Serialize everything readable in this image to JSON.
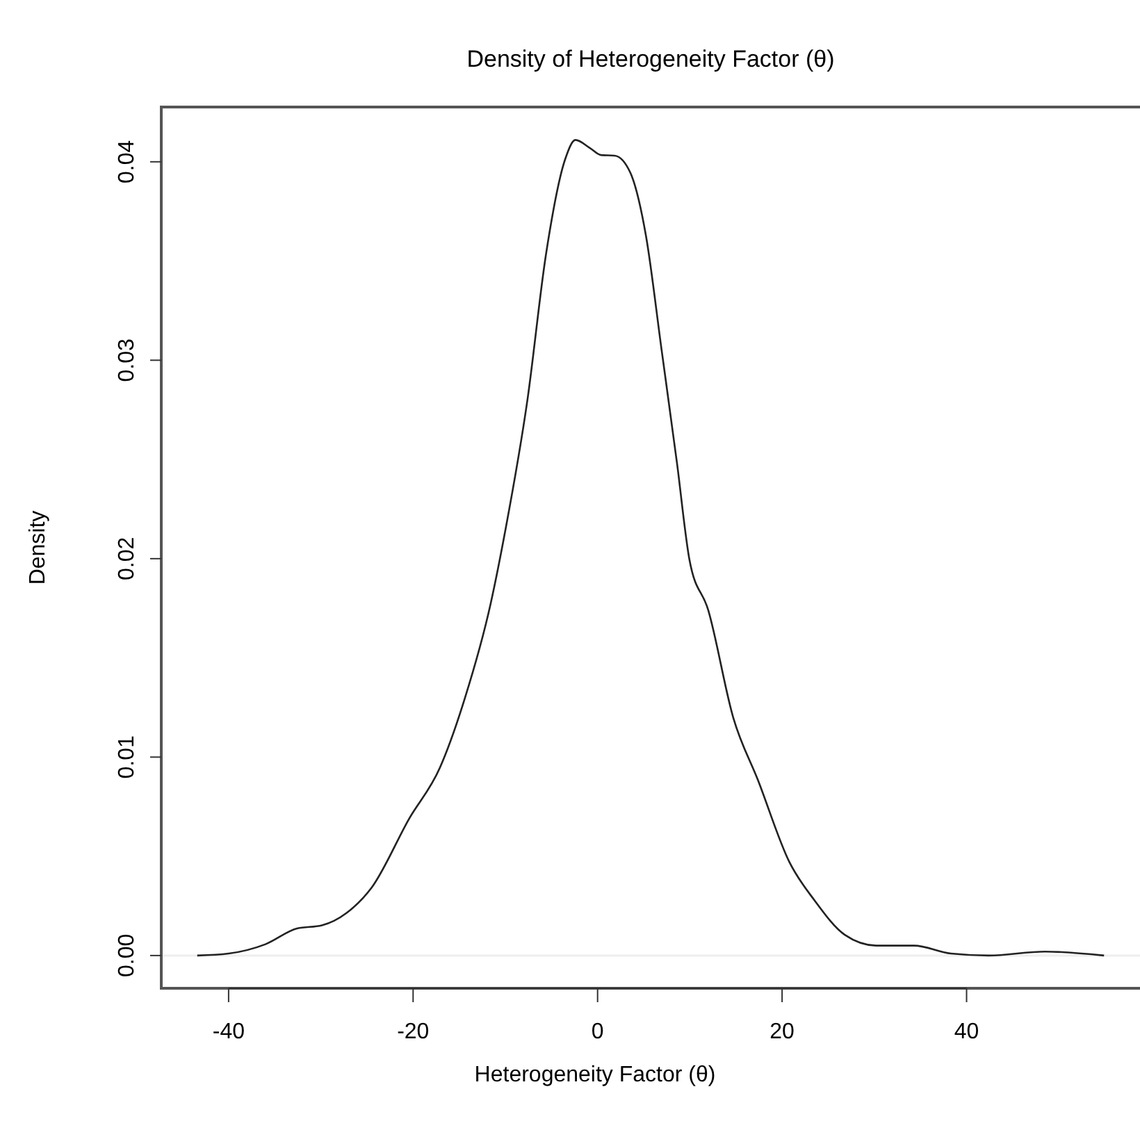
{
  "chart_data": {
    "type": "line",
    "title": "Density of Heterogeneity Factor (θ)",
    "xlabel": "Heterogeneity Factor (θ)",
    "ylabel": "Density",
    "x": [
      -43.4,
      -40.0,
      -36.0,
      -32.6,
      -29.9,
      -27.2,
      -24.5,
      -20.4,
      -17.1,
      -14.4,
      -11.6,
      -9.96,
      -7.6,
      -5.6,
      -3.55,
      -2.4,
      -0.85,
      0.37,
      1.85,
      3.55,
      5.24,
      6.93,
      8.6,
      9.96,
      12.0,
      14.7,
      17.4,
      20.8,
      23.5,
      26.8,
      30.2,
      34.3,
      38.3,
      42.4,
      48.5,
      54.9
    ],
    "series": [
      {
        "color": "#222222",
        "values": [
          0.0,
          0.0001,
          0.00057,
          0.00136,
          0.00152,
          0.00215,
          0.00342,
          0.00692,
          0.00946,
          0.01295,
          0.01772,
          0.02153,
          0.02802,
          0.03532,
          0.04008,
          0.0411,
          0.0407,
          0.04034,
          0.04031,
          0.03945,
          0.03628,
          0.03055,
          0.02484,
          0.01994,
          0.0174,
          0.012,
          0.00882,
          0.0047,
          0.00279,
          0.00104,
          0.0005,
          0.0005,
          0.0001,
          0.0,
          0.0002,
          0.0
        ]
      }
    ],
    "xlim": [
      -47.3,
      58.8
    ],
    "ylim": [
      -0.00165,
      0.04276
    ],
    "xticks": [
      -40,
      -20,
      0,
      20,
      40
    ],
    "yticks": [
      {
        "value": 0,
        "label": "0.00"
      },
      {
        "value": 0.01,
        "label": "0.01"
      },
      {
        "value": 0.02,
        "label": "0.02"
      },
      {
        "value": 0.03,
        "label": "0.03"
      },
      {
        "value": 0.04,
        "label": "0.04"
      }
    ],
    "ref_lines": [
      {
        "axis": "y",
        "value": 0,
        "color": "#eeeeee"
      }
    ],
    "grid": false,
    "marker": "none",
    "line_style": "solid"
  }
}
